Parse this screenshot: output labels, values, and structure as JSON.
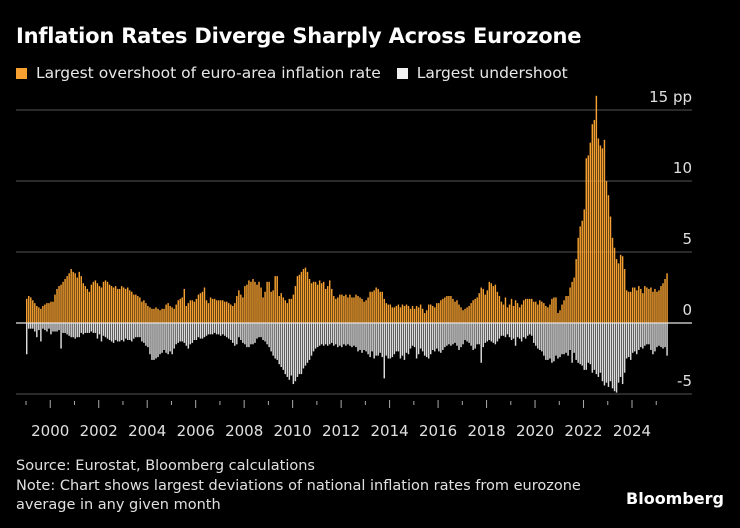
{
  "chart_data": {
    "type": "bar",
    "title": "Inflation Rates Diverge Sharply Across Eurozone",
    "frequency": "monthly",
    "start": "1999-01",
    "unit": "pp",
    "ylim": [
      -5,
      15
    ],
    "yticks": [
      "15 pp",
      "10",
      "5",
      "0",
      "-5"
    ],
    "ytick_values": [
      15,
      10,
      5,
      0,
      -5
    ],
    "xticks": [
      "2000",
      "2002",
      "2004",
      "2006",
      "2008",
      "2010",
      "2012",
      "2014",
      "2016",
      "2018",
      "2020",
      "2022",
      "2024"
    ],
    "grid": true,
    "legend_position": "top-left",
    "series": [
      {
        "name": "Largest overshoot of euro-area inflation rate",
        "color": "#f5a030",
        "values_by_year": {
          "1999": [
            1.7,
            1.9,
            1.8,
            1.6,
            1.4,
            1.2,
            1.1,
            1.0,
            1.2,
            1.3,
            1.4,
            1.4
          ],
          "2000": [
            1.5,
            1.5,
            2.0,
            2.4,
            2.6,
            2.7,
            2.9,
            3.1,
            3.3,
            3.5,
            3.8,
            3.6
          ],
          "2001": [
            3.5,
            3.2,
            3.6,
            3.3,
            2.8,
            2.6,
            2.4,
            2.2,
            2.7,
            2.9,
            3.0,
            2.8
          ],
          "2002": [
            2.6,
            2.5,
            2.9,
            3.0,
            2.9,
            2.7,
            2.6,
            2.5,
            2.6,
            2.4,
            2.4,
            2.6
          ],
          "2003": [
            2.5,
            2.4,
            2.5,
            2.3,
            2.2,
            2.0,
            2.0,
            1.9,
            1.8,
            1.5,
            1.6,
            1.4
          ],
          "2004": [
            1.2,
            1.1,
            1.0,
            1.0,
            1.1,
            1.0,
            0.9,
            1.0,
            1.0,
            1.3,
            1.4,
            1.2
          ],
          "2005": [
            1.1,
            1.0,
            1.3,
            1.6,
            1.7,
            1.8,
            2.4,
            1.2,
            1.4,
            1.6,
            1.6,
            1.5
          ],
          "2006": [
            1.7,
            2.0,
            2.1,
            2.2,
            2.5,
            1.6,
            1.4,
            1.8,
            1.7,
            1.7,
            1.6,
            1.6
          ],
          "2007": [
            1.6,
            1.6,
            1.5,
            1.5,
            1.4,
            1.3,
            1.2,
            1.4,
            1.9,
            2.3,
            2.0,
            1.8
          ],
          "2008": [
            2.6,
            2.7,
            3.0,
            2.9,
            3.1,
            2.9,
            2.7,
            2.9,
            2.5,
            1.8,
            2.2,
            2.9
          ],
          "2009": [
            2.9,
            2.2,
            2.3,
            3.3,
            3.3,
            1.9,
            2.1,
            1.8,
            1.6,
            1.4,
            1.7,
            1.7
          ],
          "2010": [
            2.0,
            2.6,
            3.3,
            3.4,
            3.6,
            3.8,
            3.9,
            3.6,
            3.1,
            2.8,
            2.9,
            2.9
          ],
          "2011": [
            2.7,
            3.0,
            2.8,
            2.9,
            2.4,
            2.6,
            3.0,
            2.4,
            1.9,
            1.7,
            1.8,
            2.0
          ],
          "2012": [
            2.0,
            1.9,
            2.0,
            1.8,
            2.0,
            1.8,
            1.8,
            2.0,
            1.9,
            1.8,
            1.7,
            1.5
          ],
          "2013": [
            1.6,
            1.8,
            2.2,
            2.2,
            2.3,
            2.5,
            2.4,
            2.2,
            2.2,
            1.7,
            1.4,
            1.3
          ],
          "2014": [
            1.3,
            1.1,
            1.1,
            1.2,
            1.3,
            1.1,
            1.3,
            1.2,
            1.3,
            1.2,
            1.0,
            1.2
          ],
          "2015": [
            1.0,
            1.2,
            1.1,
            1.3,
            1.0,
            0.7,
            0.9,
            1.3,
            1.3,
            1.2,
            1.1,
            1.4
          ],
          "2016": [
            1.4,
            1.6,
            1.7,
            1.8,
            1.9,
            1.9,
            1.9,
            1.7,
            1.5,
            1.6,
            1.3,
            1.1
          ],
          "2017": [
            0.9,
            1.0,
            1.1,
            1.2,
            1.4,
            1.6,
            1.7,
            1.8,
            2.1,
            2.5,
            2.4,
            2.0
          ],
          "2018": [
            2.3,
            2.9,
            2.8,
            2.6,
            2.7,
            2.2,
            1.9,
            1.5,
            1.3,
            1.8,
            1.1,
            1.3
          ],
          "2019": [
            1.7,
            1.2,
            1.6,
            1.4,
            1.1,
            1.3,
            1.6,
            1.7,
            1.7,
            1.7,
            1.7,
            1.5
          ],
          "2020": [
            1.5,
            1.3,
            1.6,
            1.5,
            1.4,
            1.2,
            1.1,
            1.3,
            1.7,
            1.8,
            1.8,
            0.7
          ],
          "2021": [
            0.9,
            1.3,
            1.6,
            1.9,
            1.9,
            2.5,
            2.9,
            3.2,
            4.5,
            6.0,
            6.8,
            7.2
          ],
          "2022": [
            8.0,
            11.6,
            11.8,
            12.7,
            14.0,
            14.3,
            16.0,
            13.0,
            12.5,
            12.3,
            12.9,
            10.0
          ],
          "2023": [
            9.0,
            7.5,
            6.0,
            5.3,
            4.5,
            4.2,
            4.8,
            4.7,
            3.8,
            2.3,
            2.2,
            2.2
          ],
          "2024": [
            2.5,
            2.5,
            2.3,
            2.6,
            2.4,
            2.1,
            2.6,
            2.5,
            2.4,
            2.5,
            2.2,
            2.4
          ],
          "2025": [
            2.2,
            2.3,
            2.6,
            2.8,
            3.1,
            3.5
          ]
        }
      },
      {
        "name": "Largest undershoot",
        "color": "#dcdcdc",
        "values_by_year": {
          "1999": [
            -2.2,
            -0.4,
            -0.4,
            -0.4,
            -0.6,
            -1.0,
            -0.5,
            -1.3,
            -0.4,
            -0.5,
            -0.6,
            -0.4
          ],
          "2000": [
            -0.8,
            -0.6,
            -0.6,
            -0.6,
            -0.5,
            -1.8,
            -0.7,
            -0.7,
            -0.8,
            -0.9,
            -1.0,
            -1.0
          ],
          "2001": [
            -1.1,
            -1.0,
            -1.0,
            -0.7,
            -0.8,
            -0.7,
            -0.7,
            -0.7,
            -0.6,
            -0.7,
            -0.7,
            -1.1
          ],
          "2002": [
            -0.8,
            -1.3,
            -0.9,
            -1.0,
            -1.1,
            -1.2,
            -1.3,
            -1.4,
            -1.2,
            -1.3,
            -1.3,
            -1.2
          ],
          "2003": [
            -1.3,
            -1.1,
            -1.2,
            -1.2,
            -1.3,
            -1.1,
            -1.0,
            -1.0,
            -1.0,
            -1.3,
            -1.4,
            -1.6
          ],
          "2004": [
            -1.7,
            -2.2,
            -2.6,
            -2.6,
            -2.5,
            -2.4,
            -2.2,
            -2.1,
            -1.9,
            -2.1,
            -2.2,
            -2.0
          ],
          "2005": [
            -2.2,
            -1.8,
            -1.5,
            -1.4,
            -1.3,
            -1.3,
            -1.4,
            -1.6,
            -1.8,
            -1.5,
            -1.4,
            -1.2
          ],
          "2006": [
            -1.2,
            -1.0,
            -1.1,
            -1.1,
            -1.0,
            -0.9,
            -0.8,
            -0.8,
            -0.8,
            -0.7,
            -0.8,
            -0.8
          ],
          "2007": [
            -0.9,
            -0.8,
            -0.9,
            -1.0,
            -1.1,
            -1.2,
            -1.4,
            -1.6,
            -1.5,
            -1.0,
            -1.2,
            -1.4
          ],
          "2008": [
            -1.5,
            -1.7,
            -1.7,
            -1.5,
            -1.5,
            -1.4,
            -1.1,
            -1.0,
            -1.0,
            -1.2,
            -1.3,
            -1.5
          ],
          "2009": [
            -1.7,
            -2.0,
            -2.3,
            -2.5,
            -2.6,
            -2.9,
            -3.1,
            -3.3,
            -3.6,
            -3.8,
            -4.0,
            -3.7
          ],
          "2010": [
            -4.3,
            -4.1,
            -3.8,
            -3.6,
            -3.6,
            -3.2,
            -3.0,
            -2.8,
            -2.6,
            -2.3,
            -2.0,
            -1.8
          ],
          "2011": [
            -1.7,
            -1.6,
            -1.5,
            -1.6,
            -1.5,
            -1.6,
            -1.5,
            -1.4,
            -1.6,
            -1.5,
            -1.7,
            -1.6
          ],
          "2012": [
            -1.7,
            -1.5,
            -1.6,
            -1.5,
            -1.6,
            -1.7,
            -1.6,
            -1.7,
            -2.0,
            -1.9,
            -2.1,
            -1.9
          ],
          "2013": [
            -2.0,
            -2.2,
            -2.4,
            -2.0,
            -2.5,
            -2.3,
            -2.3,
            -2.1,
            -2.4,
            -3.9,
            -2.3,
            -2.5
          ],
          "2014": [
            -2.5,
            -2.4,
            -2.2,
            -2.0,
            -2.0,
            -2.5,
            -2.3,
            -2.6,
            -2.1,
            -2.2,
            -1.8,
            -1.6
          ],
          "2015": [
            -1.7,
            -2.5,
            -2.2,
            -1.8,
            -2.0,
            -2.3,
            -2.4,
            -2.5,
            -2.2,
            -1.9,
            -2.0,
            -1.8
          ],
          "2016": [
            -2.0,
            -2.1,
            -1.9,
            -1.7,
            -1.6,
            -1.5,
            -1.6,
            -1.5,
            -1.4,
            -1.6,
            -1.9,
            -1.7
          ],
          "2017": [
            -1.5,
            -1.2,
            -1.3,
            -1.4,
            -1.6,
            -1.9,
            -1.8,
            -1.5,
            -1.5,
            -2.8,
            -1.7,
            -1.4
          ],
          "2018": [
            -1.3,
            -1.2,
            -1.3,
            -1.4,
            -1.5,
            -1.3,
            -1.1,
            -0.9,
            -0.9,
            -1.0,
            -0.8,
            -1.0
          ],
          "2019": [
            -1.2,
            -1.1,
            -1.6,
            -1.0,
            -1.1,
            -1.3,
            -1.0,
            -1.1,
            -0.9,
            -0.8,
            -0.9,
            -1.4
          ],
          "2020": [
            -1.6,
            -1.8,
            -1.9,
            -2.0,
            -2.3,
            -2.6,
            -2.6,
            -2.5,
            -2.8,
            -2.7,
            -2.3,
            -2.5
          ],
          "2021": [
            -2.4,
            -2.2,
            -2.2,
            -2.1,
            -2.3,
            -1.9,
            -2.8,
            -2.1,
            -2.6,
            -2.8,
            -2.9,
            -3.0
          ],
          "2022": [
            -3.3,
            -3.3,
            -2.8,
            -2.9,
            -3.5,
            -3.3,
            -3.6,
            -3.8,
            -3.5,
            -4.1,
            -4.4,
            -4.2
          ],
          "2023": [
            -4.5,
            -4.1,
            -4.6,
            -4.8,
            -4.9,
            -4.2,
            -3.8,
            -4.3,
            -3.5,
            -2.5,
            -2.4,
            -2.6
          ],
          "2024": [
            -2.1,
            -2.0,
            -2.2,
            -1.9,
            -1.7,
            -1.8,
            -1.6,
            -1.5,
            -1.5,
            -1.9,
            -2.2,
            -2.0
          ],
          "2025": [
            -1.7,
            -1.6,
            -1.7,
            -1.8,
            -1.7,
            -2.3
          ]
        }
      }
    ]
  },
  "footer": {
    "source": "Source: Eurostat, Bloomberg calculations",
    "note_line1": "Note: Chart shows largest deviations of national inflation rates from eurozone",
    "note_line2": "average in any given month",
    "logo": "Bloomberg"
  }
}
